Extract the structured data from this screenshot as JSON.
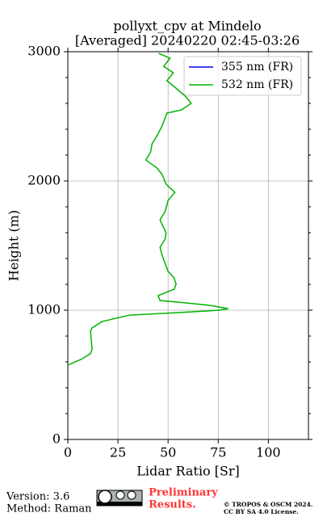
{
  "chart_data": {
    "type": "line",
    "title": "pollyxt_cpv at Mindelo",
    "subtitle": "[Averaged] 20240220 02:45-03:26",
    "x_label": "Lidar Ratio [Sr]",
    "y_label": "Height (m)",
    "xlim": [
      0,
      120
    ],
    "ylim": [
      0,
      3000
    ],
    "xticks": [
      0,
      25,
      50,
      75,
      100
    ],
    "yticks": [
      0,
      1000,
      2000,
      3000
    ],
    "yminorticks": [
      200,
      400,
      600,
      800,
      1200,
      1400,
      1600,
      1800,
      2200,
      2400,
      2600,
      2800
    ],
    "grid": true,
    "legend": "upper right",
    "series": [
      {
        "name": "355 nm (FR)",
        "color": "#0000ff",
        "x": [],
        "y": []
      },
      {
        "name": "532 nm (FR)",
        "color": "#00b400",
        "x": [
          0,
          6.5,
          11.3,
          12.1,
          11.3,
          12,
          17,
          30.8,
          47,
          63,
          75.3,
          80,
          71,
          59,
          46,
          45,
          49,
          53,
          54,
          53,
          50,
          48.5,
          47,
          46,
          48.5,
          49,
          47,
          46,
          48.5,
          50,
          53.4,
          49,
          47,
          44.5,
          38.9,
          41.3,
          42,
          44.5,
          47,
          49.4,
          56.7,
          61.5,
          59,
          53.4,
          49.4,
          52.6,
          47.8,
          51,
          45.3
        ],
        "y": [
          575,
          619,
          663,
          700,
          838,
          862,
          912,
          962,
          975,
          988,
          1000,
          1012,
          1037,
          1056,
          1075,
          1112,
          1138,
          1162,
          1200,
          1250,
          1300,
          1362,
          1425,
          1487,
          1550,
          1600,
          1662,
          1700,
          1762,
          1850,
          1912,
          1975,
          2050,
          2100,
          2162,
          2225,
          2287,
          2350,
          2425,
          2525,
          2550,
          2600,
          2650,
          2725,
          2775,
          2837,
          2887,
          2950,
          2987
        ]
      }
    ]
  },
  "footer": {
    "version": "Version: 3.6",
    "method": "Method: Raman",
    "preliminary": [
      "Preliminary",
      "Results."
    ],
    "copyright": [
      "© TROPOS & OSCM 2024.",
      "CC BY SA 4.0 License."
    ]
  }
}
